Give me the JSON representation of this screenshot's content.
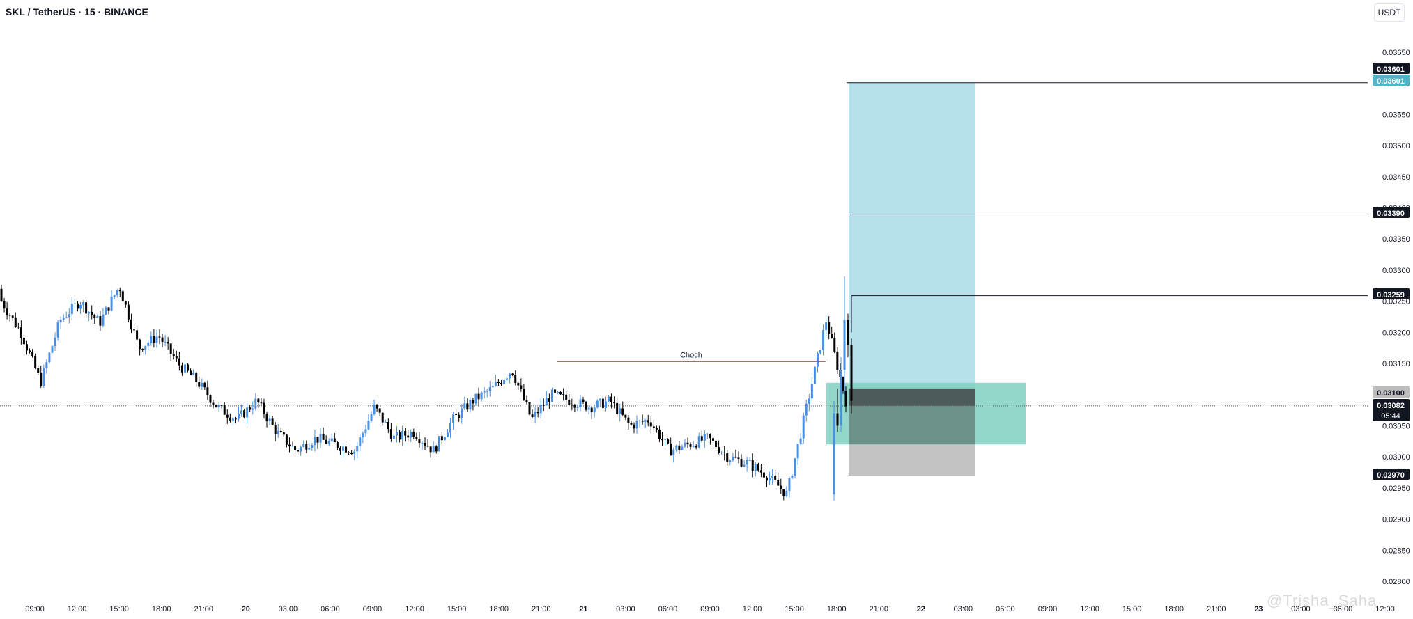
{
  "header": {
    "symbol_title": "SKL / TetherUS · 15 · BINANCE",
    "currency_button": "USDT"
  },
  "watermark": "@Trisha_Saha",
  "colors": {
    "up": "#4a90e2",
    "down": "#000000",
    "target_zone": "#b7e1ea",
    "entry_zone": "#7fd0c0",
    "stop_zone": "#c4c4c4",
    "choch_line": "#e53935"
  },
  "chart_data": {
    "type": "candlestick",
    "title": "SKL / TetherUS · 15 · BINANCE",
    "ylim": [
      0.02775,
      0.03682
    ],
    "grid": false,
    "y_ticks": [
      "0.03650",
      "0.03600",
      "0.03550",
      "0.03500",
      "0.03450",
      "0.03400",
      "0.03350",
      "0.03300",
      "0.03250",
      "0.03200",
      "0.03150",
      "0.03100",
      "0.03050",
      "0.03000",
      "0.02950",
      "0.02900",
      "0.02850",
      "0.02800"
    ],
    "x_ticks": [
      "09:00",
      "12:00",
      "15:00",
      "18:00",
      "21:00",
      "20",
      "03:00",
      "06:00",
      "09:00",
      "12:00",
      "15:00",
      "18:00",
      "21:00",
      "21",
      "03:00",
      "06:00",
      "09:00",
      "12:00",
      "15:00",
      "18:00",
      "21:00",
      "22",
      "03:00",
      "06:00",
      "09:00",
      "12:00",
      "15:00",
      "18:00",
      "21:00",
      "23",
      "03:00",
      "06:00",
      "12:00"
    ],
    "price_labels": [
      {
        "value": "0.03601",
        "style": "dark"
      },
      {
        "value": "0.03601",
        "style": "teal"
      },
      {
        "value": "0.03390",
        "style": "dark"
      },
      {
        "value": "0.03259",
        "style": "dark"
      },
      {
        "value": "0.03100",
        "style": "gray"
      },
      {
        "value": "0.03082",
        "style": "dark",
        "sub": "05:44"
      },
      {
        "value": "0.02970",
        "style": "dark"
      }
    ],
    "horizontal_levels": [
      0.03601,
      0.0339,
      0.03259
    ],
    "current_price": 0.03082,
    "annotations": [
      {
        "label": "Choch",
        "price": 0.03153
      }
    ],
    "position": {
      "target": 0.03601,
      "entry_high": 0.0311,
      "entry_low": 0.0302,
      "stop": 0.0297
    },
    "series_anchors": [
      0.0325,
      0.032,
      0.0312,
      0.0322,
      0.0325,
      0.03215,
      0.03275,
      0.03175,
      0.03195,
      0.0315,
      0.0312,
      0.0308,
      0.0306,
      0.0309,
      0.0304,
      0.0301,
      0.0303,
      0.0302,
      0.0301,
      0.0308,
      0.0303,
      0.0304,
      0.0301,
      0.0306,
      0.0309,
      0.0311,
      0.0314,
      0.0306,
      0.031,
      0.0309,
      0.0308,
      0.0309,
      0.0305,
      0.0306,
      0.0301,
      0.0302,
      0.0303,
      0.03,
      0.0299,
      0.0297,
      0.0294,
      0.0308,
      0.0322,
      0.0309
    ]
  }
}
